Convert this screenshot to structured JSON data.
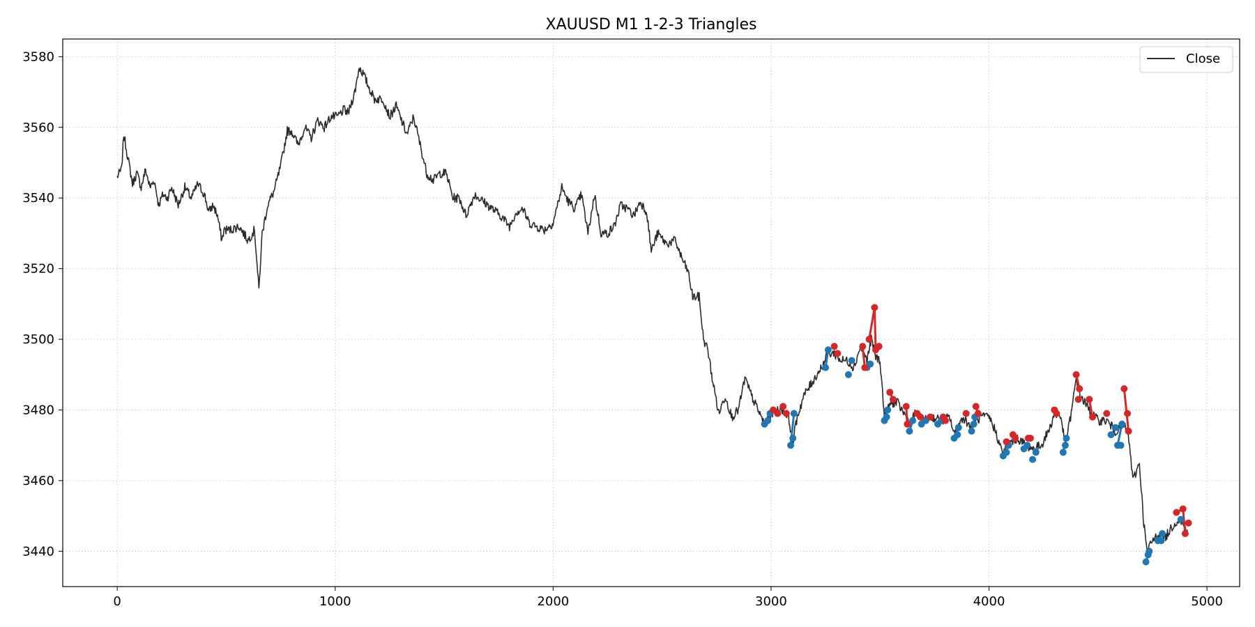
{
  "chart_data": {
    "type": "line",
    "title": "XAUUSD M1 1-2-3 Triangles",
    "xlabel": "",
    "ylabel": "",
    "xlim": [
      -250,
      5150
    ],
    "ylim": [
      3430,
      3585
    ],
    "x_ticks": [
      0,
      1000,
      2000,
      3000,
      4000,
      5000
    ],
    "y_ticks": [
      3440,
      3460,
      3480,
      3500,
      3520,
      3540,
      3560,
      3580
    ],
    "grid": true,
    "legend": {
      "position": "top-right",
      "entries": [
        "Close"
      ]
    },
    "colors": {
      "close": "#2b2b2b",
      "bull": "#1f77b4",
      "bear": "#d62728"
    },
    "series": [
      {
        "name": "Close",
        "keypoints": [
          [
            0,
            3546
          ],
          [
            20,
            3548
          ],
          [
            30,
            3558
          ],
          [
            50,
            3551
          ],
          [
            70,
            3544
          ],
          [
            90,
            3547
          ],
          [
            110,
            3543
          ],
          [
            130,
            3548
          ],
          [
            150,
            3543
          ],
          [
            170,
            3545
          ],
          [
            190,
            3538
          ],
          [
            210,
            3541
          ],
          [
            230,
            3540
          ],
          [
            250,
            3543
          ],
          [
            280,
            3538
          ],
          [
            310,
            3543
          ],
          [
            340,
            3540
          ],
          [
            370,
            3544
          ],
          [
            400,
            3541
          ],
          [
            420,
            3536
          ],
          [
            440,
            3538
          ],
          [
            460,
            3535
          ],
          [
            480,
            3528
          ],
          [
            490,
            3531
          ],
          [
            520,
            3531
          ],
          [
            560,
            3532
          ],
          [
            600,
            3528
          ],
          [
            630,
            3531
          ],
          [
            650,
            3514
          ],
          [
            665,
            3530
          ],
          [
            690,
            3538
          ],
          [
            720,
            3542
          ],
          [
            750,
            3549
          ],
          [
            780,
            3559
          ],
          [
            800,
            3559
          ],
          [
            830,
            3555
          ],
          [
            860,
            3560
          ],
          [
            890,
            3557
          ],
          [
            920,
            3562
          ],
          [
            950,
            3560
          ],
          [
            980,
            3563
          ],
          [
            1010,
            3563
          ],
          [
            1040,
            3565
          ],
          [
            1060,
            3564
          ],
          [
            1090,
            3570
          ],
          [
            1110,
            3577
          ],
          [
            1130,
            3575
          ],
          [
            1150,
            3572
          ],
          [
            1180,
            3568
          ],
          [
            1220,
            3568
          ],
          [
            1250,
            3563
          ],
          [
            1280,
            3566
          ],
          [
            1310,
            3561
          ],
          [
            1330,
            3558
          ],
          [
            1360,
            3563
          ],
          [
            1390,
            3555
          ],
          [
            1420,
            3547
          ],
          [
            1450,
            3545
          ],
          [
            1480,
            3547
          ],
          [
            1510,
            3547
          ],
          [
            1540,
            3540
          ],
          [
            1570,
            3540
          ],
          [
            1600,
            3535
          ],
          [
            1640,
            3541
          ],
          [
            1680,
            3539
          ],
          [
            1720,
            3537
          ],
          [
            1760,
            3535
          ],
          [
            1800,
            3532
          ],
          [
            1830,
            3536
          ],
          [
            1860,
            3537
          ],
          [
            1890,
            3533
          ],
          [
            1920,
            3532
          ],
          [
            1960,
            3531
          ],
          [
            2000,
            3533
          ],
          [
            2040,
            3543
          ],
          [
            2070,
            3539
          ],
          [
            2100,
            3537
          ],
          [
            2130,
            3541
          ],
          [
            2160,
            3530
          ],
          [
            2190,
            3541
          ],
          [
            2220,
            3530
          ],
          [
            2250,
            3530
          ],
          [
            2280,
            3532
          ],
          [
            2310,
            3538
          ],
          [
            2340,
            3537
          ],
          [
            2370,
            3535
          ],
          [
            2400,
            3539
          ],
          [
            2430,
            3536
          ],
          [
            2450,
            3525
          ],
          [
            2480,
            3530
          ],
          [
            2520,
            3527
          ],
          [
            2560,
            3528
          ],
          [
            2590,
            3523
          ],
          [
            2620,
            3519
          ],
          [
            2640,
            3512
          ],
          [
            2670,
            3512
          ],
          [
            2690,
            3500
          ],
          [
            2710,
            3497
          ],
          [
            2730,
            3489
          ],
          [
            2760,
            3479
          ],
          [
            2790,
            3484
          ],
          [
            2820,
            3478
          ],
          [
            2850,
            3480
          ],
          [
            2880,
            3489
          ],
          [
            2910,
            3484
          ],
          [
            2940,
            3480
          ],
          [
            2970,
            3476
          ],
          [
            3000,
            3479
          ],
          [
            3030,
            3480
          ],
          [
            3060,
            3480
          ],
          [
            3080,
            3478
          ],
          [
            3100,
            3471
          ],
          [
            3120,
            3478
          ],
          [
            3150,
            3484
          ],
          [
            3180,
            3487
          ],
          [
            3210,
            3490
          ],
          [
            3240,
            3493
          ],
          [
            3260,
            3496
          ],
          [
            3290,
            3496
          ],
          [
            3320,
            3494
          ],
          [
            3350,
            3494
          ],
          [
            3380,
            3492
          ],
          [
            3410,
            3498
          ],
          [
            3440,
            3494
          ],
          [
            3460,
            3500
          ],
          [
            3480,
            3495
          ],
          [
            3500,
            3494
          ],
          [
            3520,
            3478
          ],
          [
            3550,
            3482
          ],
          [
            3580,
            3482
          ],
          [
            3620,
            3478
          ],
          [
            3640,
            3476
          ],
          [
            3660,
            3479
          ],
          [
            3700,
            3477
          ],
          [
            3740,
            3478
          ],
          [
            3780,
            3477
          ],
          [
            3820,
            3478
          ],
          [
            3840,
            3473
          ],
          [
            3880,
            3478
          ],
          [
            3920,
            3475
          ],
          [
            3960,
            3478
          ],
          [
            4000,
            3478
          ],
          [
            4030,
            3474
          ],
          [
            4060,
            3468
          ],
          [
            4100,
            3471
          ],
          [
            4130,
            3472
          ],
          [
            4170,
            3470
          ],
          [
            4200,
            3469
          ],
          [
            4240,
            3470
          ],
          [
            4280,
            3475
          ],
          [
            4300,
            3479
          ],
          [
            4330,
            3478
          ],
          [
            4350,
            3470
          ],
          [
            4380,
            3480
          ],
          [
            4400,
            3489
          ],
          [
            4420,
            3484
          ],
          [
            4460,
            3480
          ],
          [
            4500,
            3477
          ],
          [
            4540,
            3477
          ],
          [
            4580,
            3474
          ],
          [
            4610,
            3475
          ],
          [
            4630,
            3475
          ],
          [
            4645,
            3470
          ],
          [
            4660,
            3460
          ],
          [
            4690,
            3465
          ],
          [
            4710,
            3448
          ],
          [
            4725,
            3440
          ],
          [
            4750,
            3443
          ],
          [
            4780,
            3445
          ],
          [
            4810,
            3444
          ],
          [
            4840,
            3447
          ],
          [
            4870,
            3449
          ],
          [
            4900,
            3447
          ],
          [
            4915,
            3445
          ]
        ]
      }
    ],
    "triangles": {
      "bull_points": [
        [
          2970,
          3476
        ],
        [
          2985,
          3477
        ],
        [
          2995,
          3479
        ],
        [
          3090,
          3470
        ],
        [
          3100,
          3472
        ],
        [
          3105,
          3479
        ],
        [
          3250,
          3492
        ],
        [
          3262,
          3497
        ],
        [
          3355,
          3490
        ],
        [
          3370,
          3494
        ],
        [
          3440,
          3492
        ],
        [
          3455,
          3493
        ],
        [
          3520,
          3477
        ],
        [
          3530,
          3478
        ],
        [
          3535,
          3480
        ],
        [
          3635,
          3474
        ],
        [
          3650,
          3477
        ],
        [
          3690,
          3476
        ],
        [
          3710,
          3477
        ],
        [
          3765,
          3476
        ],
        [
          3780,
          3477
        ],
        [
          3840,
          3472
        ],
        [
          3855,
          3473
        ],
        [
          3860,
          3475
        ],
        [
          3920,
          3474
        ],
        [
          3930,
          3476
        ],
        [
          3935,
          3478
        ],
        [
          4065,
          3467
        ],
        [
          4080,
          3468
        ],
        [
          4090,
          3470
        ],
        [
          4160,
          3469
        ],
        [
          4175,
          3470
        ],
        [
          4200,
          3466
        ],
        [
          4215,
          3468
        ],
        [
          4340,
          3468
        ],
        [
          4350,
          3470
        ],
        [
          4355,
          3472
        ],
        [
          4560,
          3473
        ],
        [
          4580,
          3475
        ],
        [
          4590,
          3470
        ],
        [
          4605,
          3470
        ],
        [
          4610,
          3476
        ],
        [
          4720,
          3437
        ],
        [
          4730,
          3439
        ],
        [
          4735,
          3440
        ],
        [
          4775,
          3443
        ],
        [
          4790,
          3443
        ],
        [
          4795,
          3445
        ],
        [
          4880,
          3449
        ]
      ],
      "bear_points": [
        [
          3010,
          3480
        ],
        [
          3030,
          3479
        ],
        [
          3055,
          3481
        ],
        [
          3070,
          3479
        ],
        [
          3290,
          3498
        ],
        [
          3305,
          3496
        ],
        [
          3420,
          3498
        ],
        [
          3430,
          3492
        ],
        [
          3450,
          3500
        ],
        [
          3475,
          3509
        ],
        [
          3480,
          3497
        ],
        [
          3495,
          3498
        ],
        [
          3545,
          3485
        ],
        [
          3560,
          3483
        ],
        [
          3620,
          3481
        ],
        [
          3625,
          3476
        ],
        [
          3670,
          3479
        ],
        [
          3685,
          3478
        ],
        [
          3730,
          3478
        ],
        [
          3790,
          3478
        ],
        [
          3800,
          3477
        ],
        [
          3895,
          3479
        ],
        [
          3940,
          3481
        ],
        [
          3950,
          3479
        ],
        [
          4080,
          3471
        ],
        [
          4110,
          3473
        ],
        [
          4120,
          3472
        ],
        [
          4180,
          3472
        ],
        [
          4190,
          3472
        ],
        [
          4300,
          3480
        ],
        [
          4310,
          3479
        ],
        [
          4400,
          3490
        ],
        [
          4415,
          3486
        ],
        [
          4410,
          3483
        ],
        [
          4460,
          3483
        ],
        [
          4475,
          3478
        ],
        [
          4540,
          3479
        ],
        [
          4620,
          3486
        ],
        [
          4635,
          3479
        ],
        [
          4640,
          3474
        ],
        [
          4860,
          3451
        ],
        [
          4890,
          3452
        ],
        [
          4900,
          3445
        ],
        [
          4915,
          3448
        ]
      ],
      "bull_segments": [
        [
          [
            2970,
            3476
          ],
          [
            2985,
            3477
          ]
        ],
        [
          [
            3090,
            3470
          ],
          [
            3105,
            3479
          ]
        ],
        [
          [
            3250,
            3492
          ],
          [
            3262,
            3497
          ]
        ],
        [
          [
            3520,
            3477
          ],
          [
            3535,
            3480
          ]
        ],
        [
          [
            3635,
            3474
          ],
          [
            3650,
            3477
          ]
        ],
        [
          [
            3840,
            3472
          ],
          [
            3860,
            3475
          ]
        ],
        [
          [
            3920,
            3474
          ],
          [
            3935,
            3478
          ]
        ],
        [
          [
            4065,
            3467
          ],
          [
            4090,
            3470
          ]
        ],
        [
          [
            4340,
            3468
          ],
          [
            4355,
            3472
          ]
        ],
        [
          [
            4590,
            3470
          ],
          [
            4610,
            3476
          ]
        ],
        [
          [
            4720,
            3437
          ],
          [
            4735,
            3440
          ]
        ],
        [
          [
            4775,
            3443
          ],
          [
            4795,
            3445
          ]
        ]
      ],
      "bear_segments": [
        [
          [
            3450,
            3500
          ],
          [
            3475,
            3509
          ]
        ],
        [
          [
            3475,
            3509
          ],
          [
            3480,
            3497
          ]
        ],
        [
          [
            3420,
            3498
          ],
          [
            3430,
            3492
          ]
        ],
        [
          [
            4400,
            3490
          ],
          [
            4415,
            3486
          ]
        ],
        [
          [
            4620,
            3486
          ],
          [
            4640,
            3474
          ]
        ],
        [
          [
            4860,
            3451
          ],
          [
            4890,
            3452
          ]
        ],
        [
          [
            4890,
            3452
          ],
          [
            4900,
            3445
          ]
        ],
        [
          [
            3545,
            3485
          ],
          [
            3560,
            3483
          ]
        ],
        [
          [
            3620,
            3481
          ],
          [
            3625,
            3476
          ]
        ],
        [
          [
            4460,
            3483
          ],
          [
            4475,
            3478
          ]
        ],
        [
          [
            3940,
            3481
          ],
          [
            3950,
            3479
          ]
        ],
        [
          [
            4300,
            3480
          ],
          [
            4310,
            3479
          ]
        ]
      ]
    }
  }
}
